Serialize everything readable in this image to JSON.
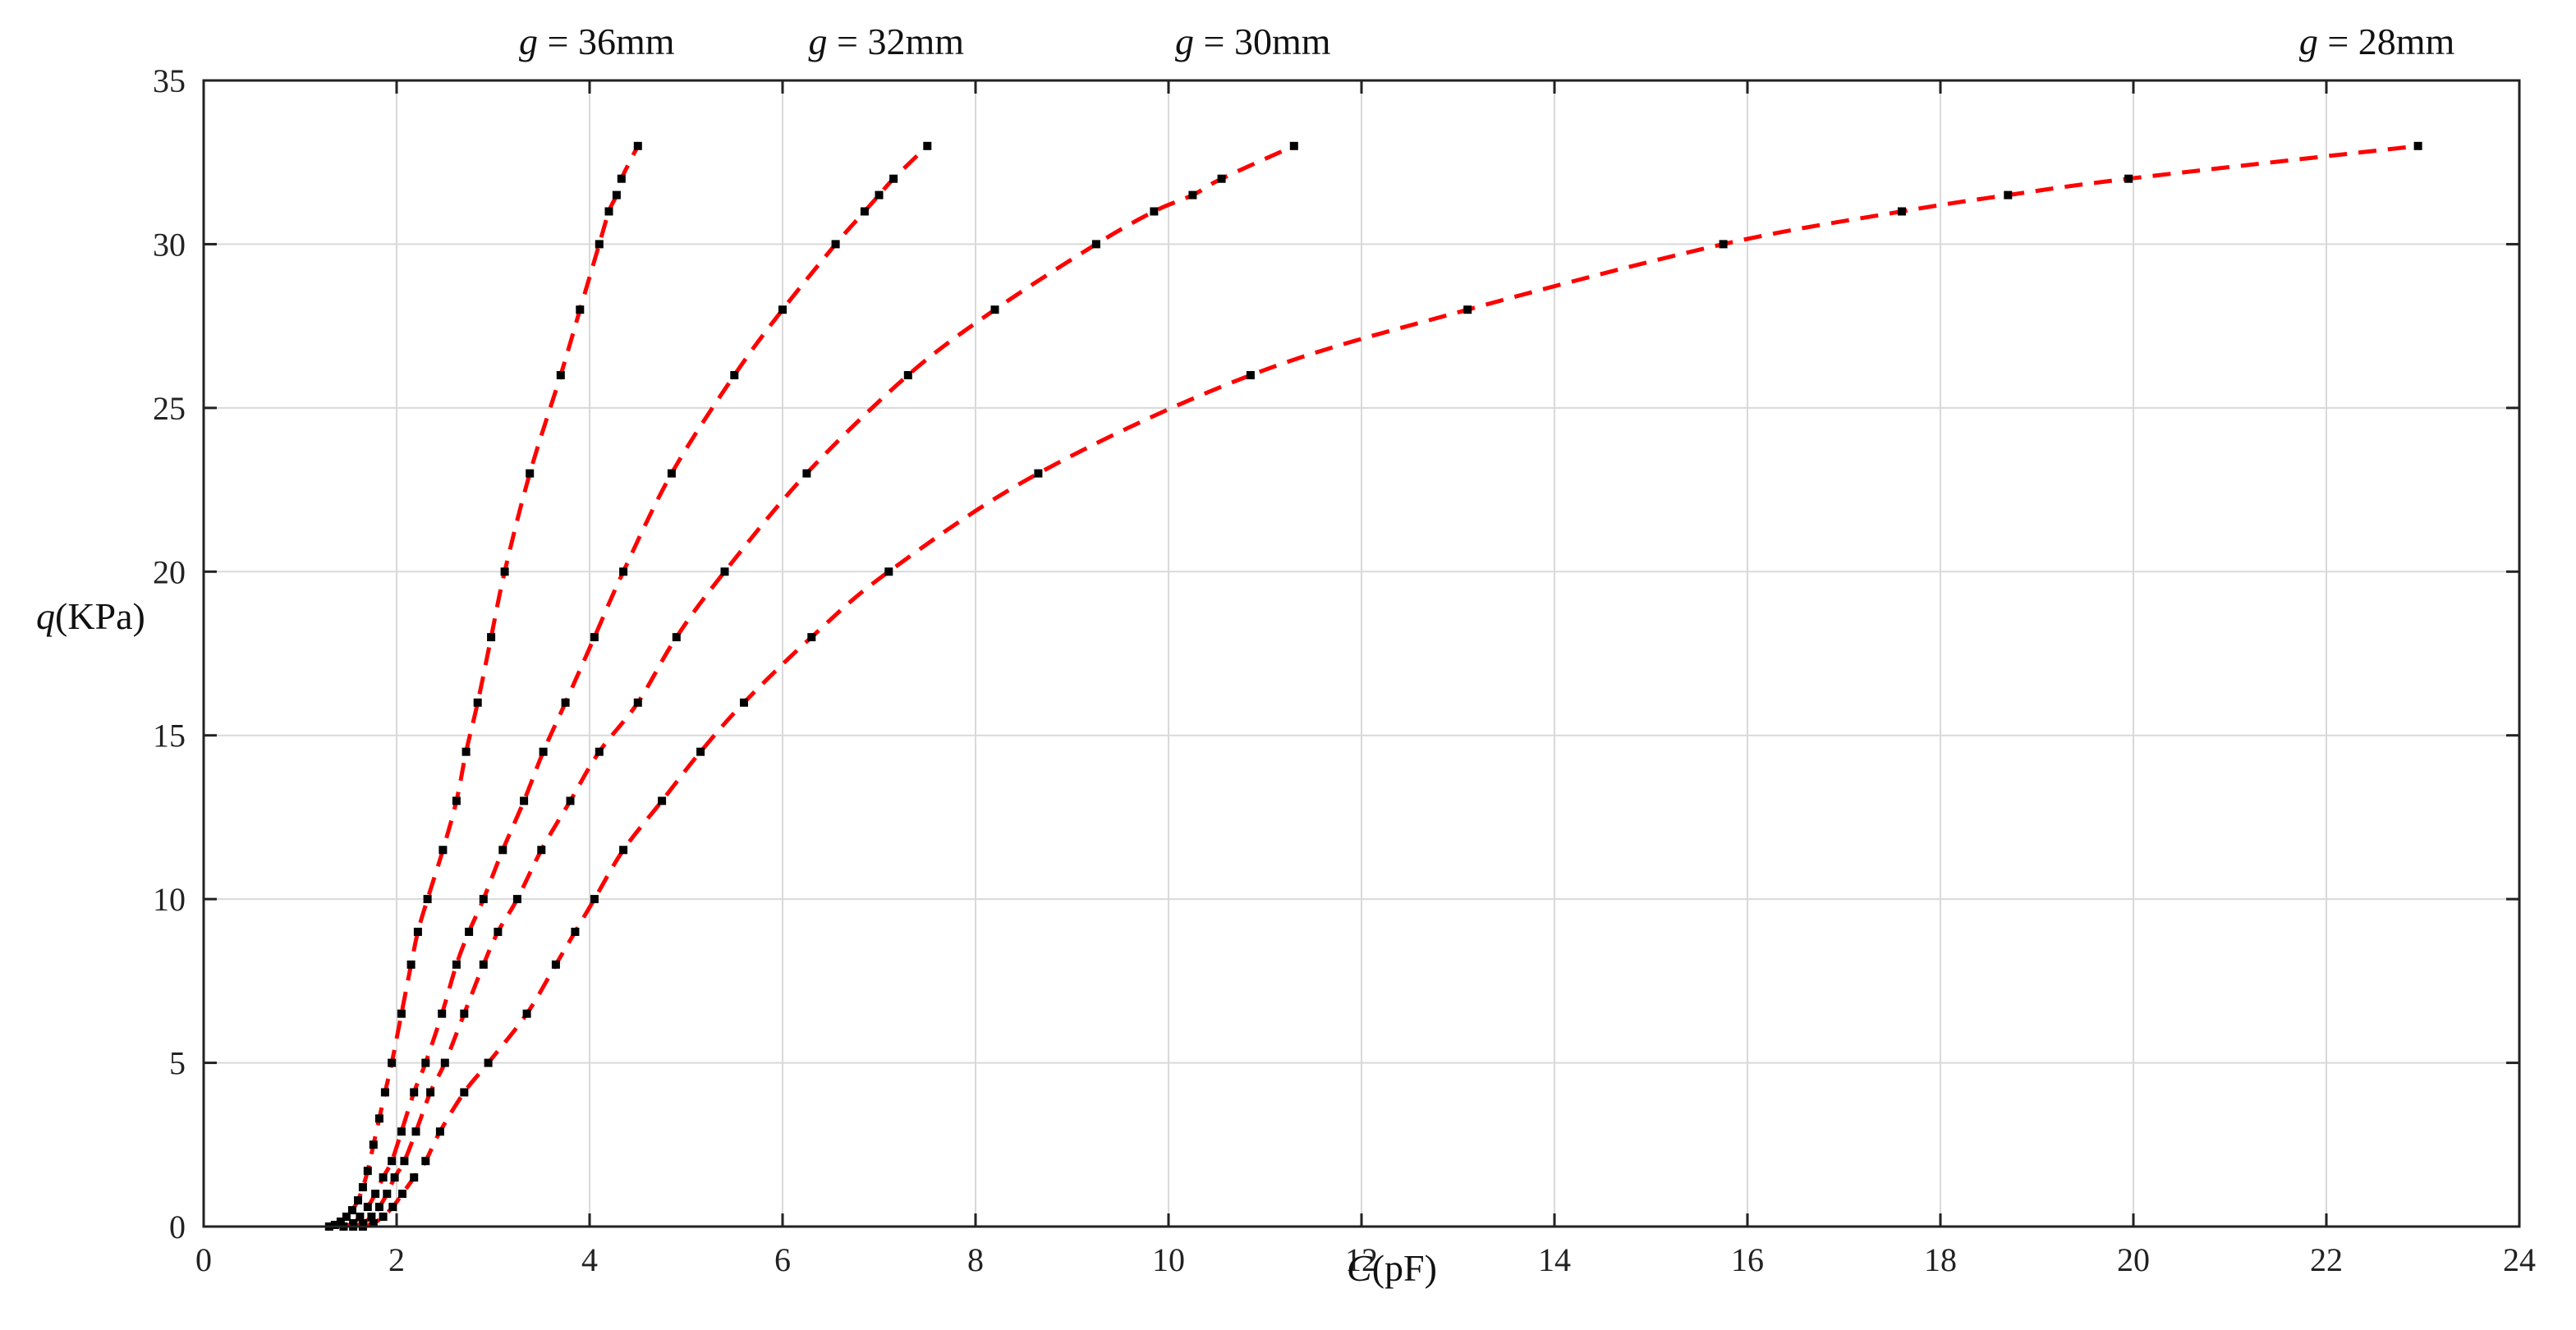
{
  "chart_data": {
    "type": "scatter",
    "title": "",
    "xlabel": {
      "symbol": "C",
      "unit": "(pF)"
    },
    "ylabel": {
      "symbol": "q",
      "unit": "(KPa)"
    },
    "xlim": [
      0,
      24
    ],
    "ylim": [
      0,
      35
    ],
    "xticks": [
      "0",
      "2",
      "4",
      "6",
      "8",
      "10",
      "12",
      "14",
      "16",
      "18",
      "20",
      "22",
      "24"
    ],
    "yticks": [
      "0",
      "5",
      "10",
      "15",
      "20",
      "25",
      "30",
      "35"
    ],
    "grid": true,
    "line_color": "#ff0000",
    "marker_color": "#000000",
    "series": [
      {
        "label_symbol": "g",
        "label_value": " = 36mm",
        "points": [
          [
            1.3,
            0
          ],
          [
            1.36,
            0.05
          ],
          [
            1.42,
            0.15
          ],
          [
            1.48,
            0.3
          ],
          [
            1.54,
            0.5
          ],
          [
            1.6,
            0.8
          ],
          [
            1.65,
            1.2
          ],
          [
            1.7,
            1.7
          ],
          [
            1.76,
            2.5
          ],
          [
            1.82,
            3.3
          ],
          [
            1.88,
            4.1
          ],
          [
            1.95,
            5.0
          ],
          [
            2.05,
            6.5
          ],
          [
            2.15,
            8.0
          ],
          [
            2.22,
            9.0
          ],
          [
            2.32,
            10.0
          ],
          [
            2.48,
            11.5
          ],
          [
            2.62,
            13.0
          ],
          [
            2.72,
            14.5
          ],
          [
            2.84,
            16.0
          ],
          [
            2.98,
            18.0
          ],
          [
            3.12,
            20.0
          ],
          [
            3.38,
            23.0
          ],
          [
            3.7,
            26.0
          ],
          [
            3.9,
            28.0
          ],
          [
            4.1,
            30.0
          ],
          [
            4.2,
            31.0
          ],
          [
            4.28,
            31.5
          ],
          [
            4.33,
            32.0
          ],
          [
            4.5,
            33.0
          ]
        ]
      },
      {
        "label_symbol": "g",
        "label_value": " = 32mm",
        "points": [
          [
            1.45,
            0
          ],
          [
            1.55,
            0.1
          ],
          [
            1.62,
            0.3
          ],
          [
            1.7,
            0.6
          ],
          [
            1.78,
            1.0
          ],
          [
            1.86,
            1.5
          ],
          [
            1.95,
            2.0
          ],
          [
            2.05,
            2.9
          ],
          [
            2.18,
            4.1
          ],
          [
            2.3,
            5.0
          ],
          [
            2.47,
            6.5
          ],
          [
            2.62,
            8.0
          ],
          [
            2.75,
            9.0
          ],
          [
            2.9,
            10.0
          ],
          [
            3.1,
            11.5
          ],
          [
            3.32,
            13.0
          ],
          [
            3.52,
            14.5
          ],
          [
            3.75,
            16.0
          ],
          [
            4.05,
            18.0
          ],
          [
            4.35,
            20.0
          ],
          [
            4.85,
            23.0
          ],
          [
            5.5,
            26.0
          ],
          [
            6.0,
            28.0
          ],
          [
            6.55,
            30.0
          ],
          [
            6.85,
            31.0
          ],
          [
            7.0,
            31.5
          ],
          [
            7.15,
            32.0
          ],
          [
            7.5,
            33.0
          ]
        ]
      },
      {
        "label_symbol": "g",
        "label_value": " = 30mm",
        "points": [
          [
            1.55,
            0
          ],
          [
            1.65,
            0.1
          ],
          [
            1.74,
            0.3
          ],
          [
            1.82,
            0.6
          ],
          [
            1.9,
            1.0
          ],
          [
            1.98,
            1.5
          ],
          [
            2.08,
            2.0
          ],
          [
            2.2,
            2.9
          ],
          [
            2.35,
            4.1
          ],
          [
            2.5,
            5.0
          ],
          [
            2.7,
            6.5
          ],
          [
            2.9,
            8.0
          ],
          [
            3.05,
            9.0
          ],
          [
            3.25,
            10.0
          ],
          [
            3.5,
            11.5
          ],
          [
            3.8,
            13.0
          ],
          [
            4.1,
            14.5
          ],
          [
            4.5,
            16.0
          ],
          [
            4.9,
            18.0
          ],
          [
            5.4,
            20.0
          ],
          [
            6.25,
            23.0
          ],
          [
            7.3,
            26.0
          ],
          [
            8.2,
            28.0
          ],
          [
            9.25,
            30.0
          ],
          [
            9.85,
            31.0
          ],
          [
            10.25,
            31.5
          ],
          [
            10.55,
            32.0
          ],
          [
            11.3,
            33.0
          ]
        ]
      },
      {
        "label_symbol": "g",
        "label_value": " = 28mm",
        "points": [
          [
            1.65,
            0
          ],
          [
            1.76,
            0.1
          ],
          [
            1.86,
            0.3
          ],
          [
            1.96,
            0.6
          ],
          [
            2.06,
            1.0
          ],
          [
            2.18,
            1.5
          ],
          [
            2.3,
            2.0
          ],
          [
            2.45,
            2.9
          ],
          [
            2.7,
            4.1
          ],
          [
            2.95,
            5.0
          ],
          [
            3.35,
            6.5
          ],
          [
            3.65,
            8.0
          ],
          [
            3.85,
            9.0
          ],
          [
            4.05,
            10.0
          ],
          [
            4.35,
            11.5
          ],
          [
            4.75,
            13.0
          ],
          [
            5.15,
            14.5
          ],
          [
            5.6,
            16.0
          ],
          [
            6.3,
            18.0
          ],
          [
            7.1,
            20.0
          ],
          [
            8.65,
            23.0
          ],
          [
            10.85,
            26.0
          ],
          [
            13.1,
            28.0
          ],
          [
            15.75,
            30.0
          ],
          [
            17.6,
            31.0
          ],
          [
            18.7,
            31.5
          ],
          [
            19.95,
            32.0
          ],
          [
            22.95,
            33.0
          ]
        ]
      }
    ]
  }
}
